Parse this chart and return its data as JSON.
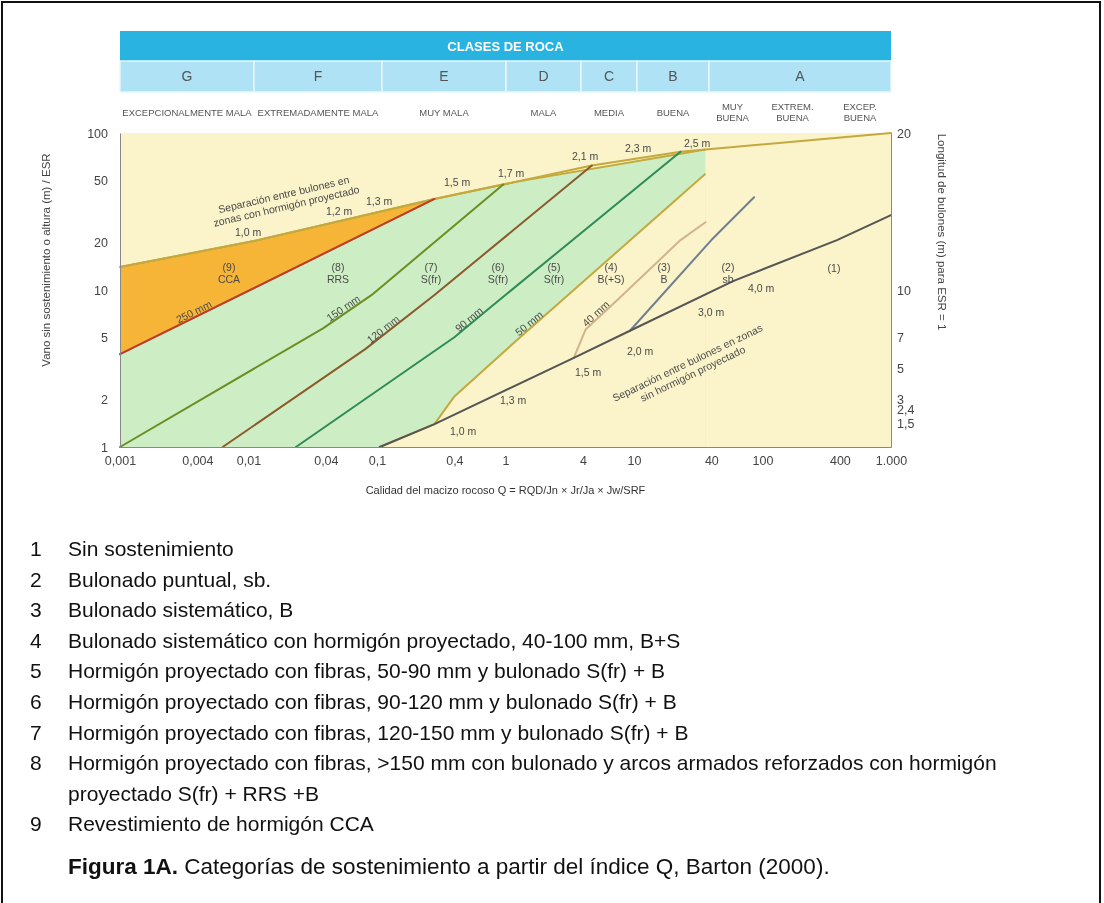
{
  "chart_data": [
    {
      "type": "other",
      "title": "CLASES DE ROCA",
      "annotations": [
        "G",
        "F",
        "E",
        "D",
        "C",
        "B",
        "A",
        "EXCEPCIONALMENTE MALA",
        "EXTREMADAMENTE MALA",
        "MUY MALA",
        "MALA",
        "MEDIA",
        "BUENA",
        "MUY BUENA",
        "EXTREM. BUENA",
        "EXCEP. BUENA"
      ]
    },
    {
      "type": "line",
      "title": "Figura 1A. Categorías de sostenimiento a partir del índice Q, Barton (2000).",
      "xlabel": "Calidad del macizo rocoso Q = RQD/Jn × Jr/Ja × Jw/SRF",
      "ylabel": "Vano sin sostenimiento o altura (m) / ESR",
      "y2label": "Longitud de bulones (m) para ESR = 1",
      "log": "xy",
      "xlim": [
        0.001,
        1000
      ],
      "ylim": [
        1,
        100
      ],
      "y2lim": [
        0,
        20
      ],
      "xticks": [
        {
          "value": 0.001,
          "label": "0,001"
        },
        {
          "value": 0.004,
          "label": "0,004"
        },
        {
          "value": 0.01,
          "label": "0,01"
        },
        {
          "value": 0.04,
          "label": "0,04"
        },
        {
          "value": 0.1,
          "label": "0,1"
        },
        {
          "value": 0.4,
          "label": "0,4"
        },
        1,
        4,
        10,
        40,
        100,
        400,
        {
          "value": 1000,
          "label": "1.000"
        }
      ],
      "yticks": [
        1,
        2,
        5,
        10,
        20,
        50,
        100
      ],
      "y2ticks": [
        20,
        10,
        7,
        5,
        3,
        {
          "value": 2.4,
          "label": "2,4"
        },
        {
          "value": 1.5,
          "label": "1,5"
        }
      ],
      "series": [
        {
          "type": "area",
          "color": "#f6b536",
          "x": [
            0.001,
            0.011,
            0.28
          ],
          "values": [
            14,
            20.5,
            38
          ]
        },
        {
          "type": "area",
          "color": "#cdeec4",
          "x": [
            0.001,
            0.011,
            0.105,
            0.28,
            0.4,
            1.23,
            36
          ],
          "values": [
            3.9,
            10.3,
            25.6,
            38,
            40.4,
            49,
            78.5
          ]
        },
        {
          "type": "area",
          "color": "#fbf3c9",
          "x": [
            0.105,
            0.28,
            0.4,
            1.23,
            36
          ],
          "values": [
            1,
            1.4,
            2.1,
            4.8,
            55
          ]
        },
        {
          "color": "#c3a93e",
          "x": [
            0.001,
            0.011,
            0.28,
            0.96,
            4.7,
            23,
            1000
          ],
          "values": [
            14,
            20.5,
            38,
            47,
            62,
            76,
            100
          ]
        },
        {
          "color": "#c0392b",
          "x": [
            0.001,
            0.28
          ],
          "values": [
            3.9,
            38
          ]
        },
        {
          "color": "#6b8e23",
          "x": [
            0.001,
            0.038,
            0.091,
            0.96
          ],
          "values": [
            1,
            5.7,
            9.3,
            47
          ]
        },
        {
          "color": "#8b5a2b",
          "x": [
            0.0063,
            0.081,
            0.28,
            4.7
          ],
          "values": [
            1,
            4.2,
            9.3,
            62
          ]
        },
        {
          "color": "#2e8b57",
          "x": [
            0.0234,
            0.4,
            0.74,
            23
          ],
          "values": [
            1,
            5,
            7.6,
            76
          ]
        },
        {
          "color": "#d2b48c",
          "x": [
            3.4,
            4.2,
            7.6,
            23,
            36
          ],
          "values": [
            3.7,
            5.6,
            8.8,
            20.8,
            27
          ]
        },
        {
          "color": "#708090",
          "x": [
            9.3,
            40,
            86
          ],
          "values": [
            5.5,
            20.8,
            39
          ]
        },
        {
          "color": "#555555",
          "x": [
            0.105,
            0.28,
            3.4,
            9.3,
            59,
            380,
            1000
          ],
          "values": [
            1,
            1.4,
            3.7,
            5.5,
            11.4,
            20.8,
            30
          ]
        }
      ],
      "annotations": [
        "1,0 m",
        "1,2 m",
        "1,3 m",
        "1,5 m",
        "1,7 m",
        "2,1 m",
        "2,3 m",
        "2,5 m",
        "Separación entre bulones en\nzonas con hormigón proyectado",
        "250 mm",
        "150 mm",
        "120 mm",
        "90 mm",
        "50 mm",
        "40 mm",
        "(9)\nCCA",
        "(8)\nRRS",
        "(7)\nS(fr)",
        "(6)\nS(fr)",
        "(5)\nS(fr)",
        "(4)\nB(+S)",
        "(3)\nB",
        "(2)\nsb",
        "(1)",
        "1,0 m",
        "1,3 m",
        "1,5 m",
        "2,0 m",
        "3,0 m",
        "4,0 m",
        "Separación entre bulones en zonas\nsin hormigón proyectado",
        "1 Sin sostenimiento",
        "2 Bulonado puntual, sb.",
        "3 Bulonado sistemático, B",
        "4 Bulonado sistemático con hormigón proyectado, 40-100 mm, B+S",
        "5 Hormigón proyectado con fibras, 50-90 mm y bulonado S(fr) + B",
        "6 Hormigón proyectado con fibras, 90-120 mm y bulonado S(fr) + B",
        "7 Hormigón proyectado con fibras, 120-150 mm y bulonado S(fr) + B",
        "8 Hormigón proyectado con fibras, >150 mm con bulonado y arcos armados reforzados con hormigón proyectado S(fr) + RRS +B",
        "9 Revestimiento de hormigón CCA"
      ]
    }
  ]
}
